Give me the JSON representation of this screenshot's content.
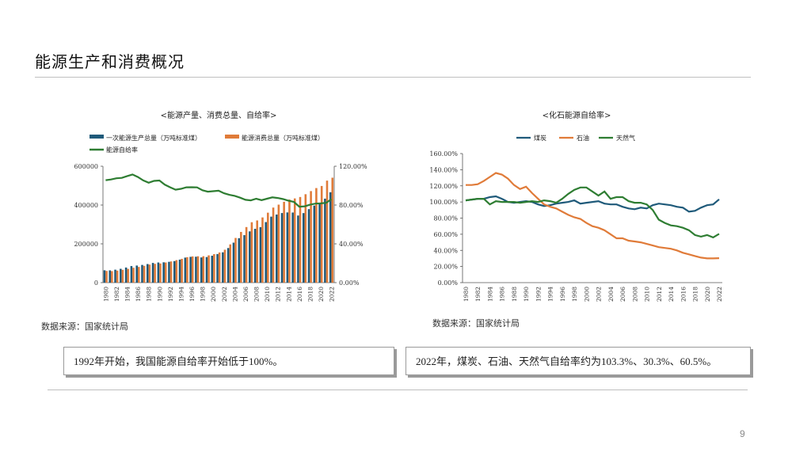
{
  "page": {
    "title": "能源生产和消费概况",
    "page_number": "9",
    "source_left": "数据来源：国家统计局",
    "source_right": "数据来源：国家统计局",
    "callout_left": "1992年开始，我国能源自给率开始低于100%。",
    "callout_right": "2022年，煤炭、石油、天然气自给率约为103.3%、30.3%、60.5%。"
  },
  "colors": {
    "production": "#1f5a7a",
    "consumption": "#e07b39",
    "self_sufficiency": "#2e7d32",
    "coal": "#1f5a7a",
    "oil": "#e07b39",
    "gas": "#2e7d32"
  },
  "chart_data": [
    {
      "type": "bar",
      "title": "<能源产量、消费总量、自给率>",
      "x": [
        1980,
        1981,
        1982,
        1983,
        1984,
        1985,
        1986,
        1987,
        1988,
        1989,
        1990,
        1991,
        1992,
        1993,
        1994,
        1995,
        1996,
        1997,
        1998,
        1999,
        2000,
        2001,
        2002,
        2003,
        2004,
        2005,
        2006,
        2007,
        2008,
        2009,
        2010,
        2011,
        2012,
        2013,
        2014,
        2015,
        2016,
        2017,
        2018,
        2019,
        2020,
        2021,
        2022
      ],
      "x_tick_labels": [
        "1980",
        "1982",
        "1984",
        "1986",
        "1988",
        "1990",
        "1992",
        "1994",
        "1996",
        "1998",
        "2000",
        "2002",
        "2004",
        "2006",
        "2008",
        "2010",
        "2012",
        "2014",
        "2016",
        "2018",
        "2020",
        "2022"
      ],
      "y_left": {
        "range": [
          0,
          600000
        ],
        "ticks": [
          "0",
          "200000",
          "400000",
          "600000"
        ]
      },
      "y_right": {
        "range": [
          0,
          120
        ],
        "ticks": [
          "0.00%",
          "40.00%",
          "80.00%",
          "120.00%"
        ]
      },
      "legend_position": "top",
      "series": [
        {
          "name": "一次能源生产总量（万吨标准煤）",
          "kind": "bar",
          "axis": "left",
          "values": [
            63700,
            63200,
            66800,
            71300,
            77900,
            85500,
            88100,
            91300,
            95800,
            101600,
            103900,
            104800,
            107300,
            111100,
            118700,
            129000,
            133000,
            133500,
            129800,
            131900,
            138600,
            147400,
            156300,
            178300,
            206100,
            229000,
            244800,
            264200,
            277400,
            286100,
            312100,
            340200,
            351000,
            358800,
            362000,
            361400,
            345900,
            358500,
            378900,
            397300,
            407300,
            433000,
            466000
          ]
        },
        {
          "name": "能源消费总量（万吨标准煤）",
          "kind": "bar",
          "axis": "left",
          "values": [
            60300,
            59400,
            62100,
            66000,
            70900,
            76700,
            80900,
            86600,
            93000,
            96900,
            98700,
            103800,
            109200,
            116000,
            122700,
            131200,
            135200,
            135900,
            136200,
            140600,
            146900,
            155500,
            169600,
            197100,
            230300,
            261400,
            286500,
            311400,
            320600,
            336100,
            360600,
            387000,
            402100,
            416900,
            428300,
            434100,
            441500,
            455800,
            471900,
            487500,
            498300,
            525900,
            541000
          ]
        },
        {
          "name": "能源自给率",
          "kind": "line",
          "axis": "right",
          "values": [
            105.6,
            106.4,
            107.6,
            108.0,
            109.9,
            111.5,
            108.9,
            105.4,
            103.0,
            104.9,
            105.3,
            101.0,
            98.3,
            95.8,
            96.7,
            98.3,
            98.4,
            98.2,
            95.3,
            93.8,
            94.3,
            94.8,
            92.2,
            90.5,
            89.5,
            87.6,
            85.4,
            84.8,
            86.5,
            85.1,
            86.5,
            87.9,
            87.3,
            86.1,
            84.5,
            83.3,
            78.3,
            78.7,
            80.3,
            81.5,
            81.7,
            82.3,
            86.1
          ]
        }
      ]
    },
    {
      "type": "line",
      "title": "<化石能源自给率>",
      "x": [
        1980,
        1981,
        1982,
        1983,
        1984,
        1985,
        1986,
        1987,
        1988,
        1989,
        1990,
        1991,
        1992,
        1993,
        1994,
        1995,
        1996,
        1997,
        1998,
        1999,
        2000,
        2001,
        2002,
        2003,
        2004,
        2005,
        2006,
        2007,
        2008,
        2009,
        2010,
        2011,
        2012,
        2013,
        2014,
        2015,
        2016,
        2017,
        2018,
        2019,
        2020,
        2021,
        2022
      ],
      "x_tick_labels": [
        "1980",
        "1982",
        "1984",
        "1986",
        "1988",
        "1990",
        "1992",
        "1994",
        "1996",
        "1998",
        "2000",
        "2002",
        "2004",
        "2006",
        "2008",
        "2010",
        "2012",
        "2014",
        "2016",
        "2018",
        "2020",
        "2022"
      ],
      "y": {
        "range": [
          0,
          160
        ],
        "ticks": [
          "0.00%",
          "20.00%",
          "40.00%",
          "60.00%",
          "80.00%",
          "100.00%",
          "120.00%",
          "140.00%",
          "160.00%"
        ]
      },
      "legend_position": "top",
      "series": [
        {
          "name": "煤炭",
          "values": [
            102,
            103,
            104,
            104,
            106,
            107,
            104,
            100,
            99,
            100,
            101,
            100,
            97,
            95,
            96,
            98,
            99,
            100,
            102,
            98,
            99,
            100,
            101,
            98,
            97,
            97,
            94,
            92,
            91,
            93,
            92,
            96,
            98,
            97,
            96,
            94,
            93,
            88,
            89,
            93,
            96,
            97,
            103.3
          ]
        },
        {
          "name": "石油",
          "values": [
            121,
            121,
            122,
            126,
            131,
            136,
            134,
            129,
            121,
            116,
            119,
            111,
            104,
            97,
            94,
            92,
            88,
            84,
            81,
            79,
            74,
            70,
            68,
            65,
            60,
            55,
            55,
            52,
            51,
            50,
            48,
            46,
            44,
            43,
            42,
            40,
            37,
            35,
            33,
            31,
            30,
            30,
            30.3
          ]
        },
        {
          "name": "天然气",
          "values": [
            102,
            103,
            104,
            104,
            97,
            101,
            100,
            100,
            100,
            99,
            100,
            101,
            100,
            102,
            101,
            99,
            104,
            110,
            115,
            118,
            118,
            113,
            108,
            113,
            104,
            106,
            106,
            101,
            99,
            99,
            97,
            90,
            78,
            74,
            71,
            70,
            68,
            65,
            59,
            57,
            59,
            56,
            60.5
          ]
        }
      ]
    }
  ]
}
